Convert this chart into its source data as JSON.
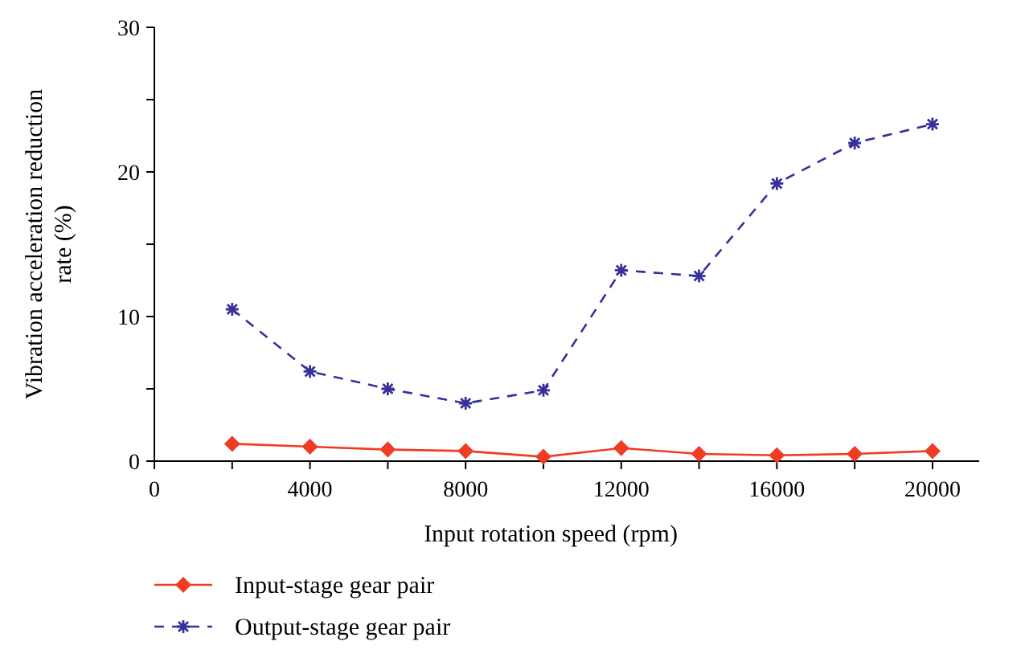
{
  "chart_data": {
    "type": "line",
    "xlabel": "Input rotation speed (rpm)",
    "ylabel": "Vibration acceleration reduction rate (%)",
    "x": [
      2000,
      4000,
      6000,
      8000,
      10000,
      12000,
      14000,
      16000,
      18000,
      20000
    ],
    "xlim": [
      0,
      21200
    ],
    "xticks": [
      0,
      {
        "value": 2000,
        "label": null
      },
      4000,
      {
        "value": 6000,
        "label": null
      },
      8000,
      {
        "value": 10000,
        "label": null
      },
      12000,
      {
        "value": 14000,
        "label": null
      },
      16000,
      {
        "value": 18000,
        "label": null
      },
      20000
    ],
    "ylim": [
      0,
      30
    ],
    "yticks": [
      0,
      {
        "value": 5,
        "label": null
      },
      10,
      {
        "value": 15,
        "label": null
      },
      20,
      {
        "value": 25,
        "label": null
      },
      30
    ],
    "grid": false,
    "legend": "bottom",
    "series": [
      {
        "name": "Input-stage gear pair",
        "color": "#f03c24",
        "marker": "diamond",
        "line_style": "solid",
        "values": [
          1.2,
          1.0,
          0.8,
          0.7,
          0.3,
          0.9,
          0.5,
          0.4,
          0.5,
          0.7
        ]
      },
      {
        "name": "Output-stage gear pair",
        "color": "#38309a",
        "marker": "cross",
        "line_style": "dashed",
        "values": [
          10.5,
          6.2,
          5.0,
          4.0,
          4.9,
          13.2,
          12.8,
          19.2,
          22.0,
          23.3
        ]
      }
    ]
  }
}
